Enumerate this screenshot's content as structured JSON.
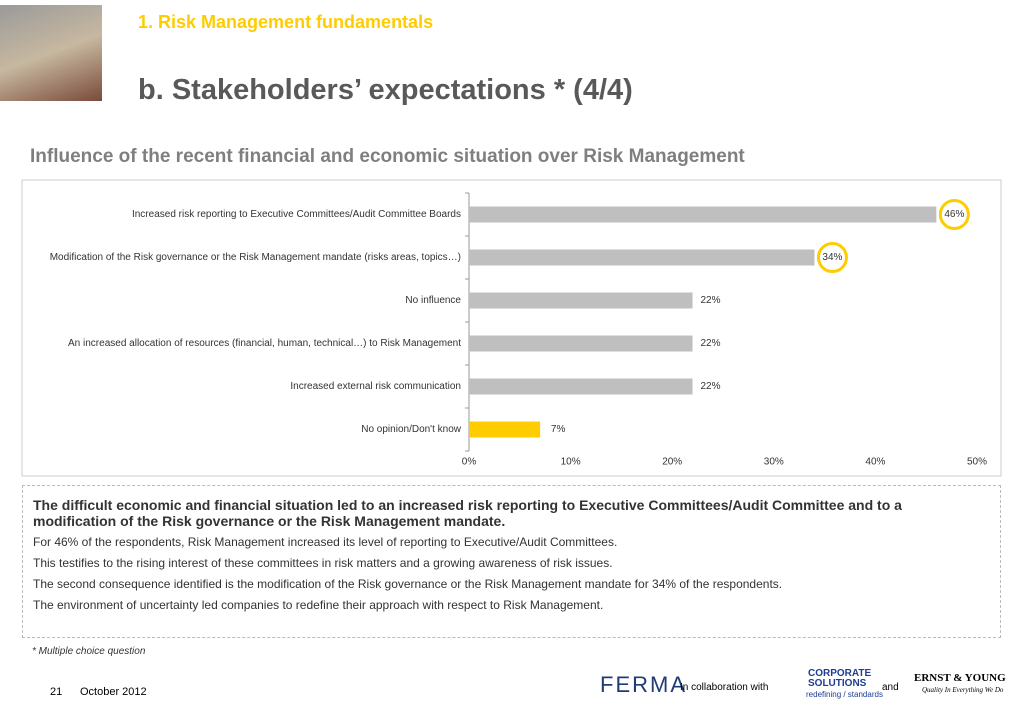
{
  "section": "1.  Risk Management fundamentals",
  "title": "b. Stakeholders’ expectations * (4/4)",
  "chart_data": {
    "type": "hbar",
    "title": "Influence of the recent financial and economic situation over Risk Management",
    "categories": [
      "Increased risk reporting to Executive Committees/Audit Committee Boards",
      "Modification of the Risk governance or the Risk Management mandate (risks areas, topics…)",
      "No influence",
      "An increased allocation of resources (financial, human, technical…) to Risk Management",
      "Increased external risk communication",
      "No opinion/Don't know"
    ],
    "values": [
      46,
      34,
      22,
      22,
      22,
      7
    ],
    "value_labels": [
      "46%",
      "34%",
      "22%",
      "22%",
      "22%",
      "7%"
    ],
    "colors": [
      "#bfbfbf",
      "#bfbfbf",
      "#bfbfbf",
      "#bfbfbf",
      "#bfbfbf",
      "#ffcc00"
    ],
    "circled": [
      0,
      1
    ],
    "xlim": [
      0,
      50
    ],
    "xticks": [
      {
        "value": 0,
        "label": "0%"
      },
      {
        "value": 10,
        "label": "10%"
      },
      {
        "value": 20,
        "label": "20%"
      },
      {
        "value": 30,
        "label": "30%"
      },
      {
        "value": 40,
        "label": "40%"
      },
      {
        "value": 50,
        "label": "50%"
      }
    ]
  },
  "summary": {
    "headline": "The difficult economic and financial situation led to an increased risk reporting to Executive Committees/Audit Committee and to a modification of the Risk governance or the Risk Management mandate.",
    "paragraphs": [
      "For 46% of the respondents, Risk Management increased its level of reporting to Executive/Audit Committees.",
      "This testifies to the rising interest of these committees in risk matters and a growing awareness of risk issues.",
      "The second consequence identified is the modification of the Risk governance or the Risk Management mandate for 34% of the respondents.",
      "The environment of uncertainty led companies to redefine their approach with respect to Risk Management."
    ]
  },
  "footnote": "* Multiple choice question",
  "footer": {
    "page": "21",
    "date": "October 2012",
    "collab": "In collaboration with",
    "and": "and",
    "ferma": "FERMA",
    "axa": "CORPORATE SOLUTIONS",
    "axa_tag": "redefining / standards",
    "ey": "ERNST & YOUNG",
    "ey_tag": "Quality In Everything We Do"
  }
}
